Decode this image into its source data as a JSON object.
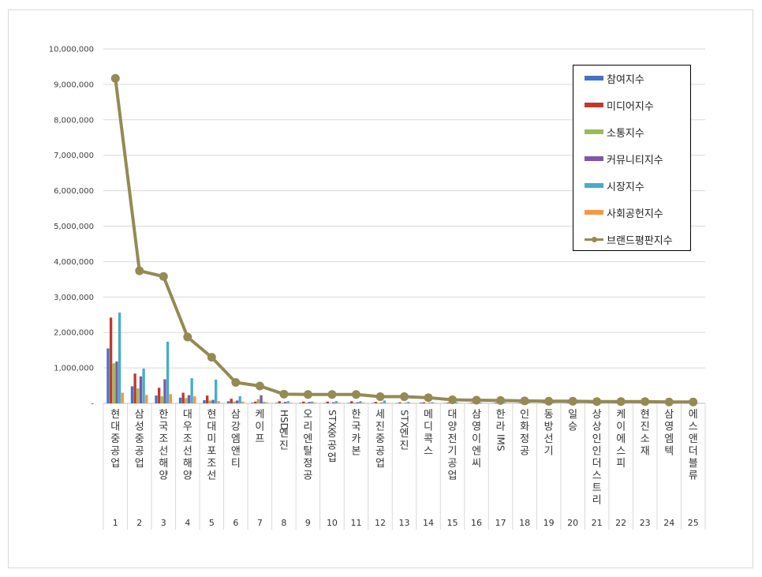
{
  "chart_data": {
    "type": "bar",
    "title": "",
    "xlabel": "",
    "ylabel": "",
    "ylim": [
      0,
      10000000
    ],
    "yticks": [
      "-",
      "1,000,000",
      "2,000,000",
      "3,000,000",
      "4,000,000",
      "5,000,000",
      "6,000,000",
      "7,000,000",
      "8,000,000",
      "9,000,000",
      "10,000,000"
    ],
    "grid": true,
    "legend_position": "top-right",
    "categories": [
      "현대중공업",
      "삼성중공업",
      "한국조선해양",
      "대우조선해양",
      "현대미포조선",
      "삼강엠앤티",
      "케이프",
      "HSD엔진",
      "오리엔탈정공",
      "STX중공업",
      "한국카본",
      "세진중공업",
      "STX엔진",
      "메디콕스",
      "대양전기공업",
      "삼영이엔씨",
      "한라IMS",
      "인화정공",
      "동방선기",
      "일승",
      "상상인인더스트리",
      "케이에스피",
      "현진소재",
      "삼영엠텍",
      "에스앤더블류"
    ],
    "ranks": [
      "1",
      "2",
      "3",
      "4",
      "5",
      "6",
      "7",
      "8",
      "9",
      "10",
      "11",
      "12",
      "13",
      "14",
      "15",
      "16",
      "17",
      "18",
      "19",
      "20",
      "21",
      "22",
      "23",
      "24",
      "25"
    ],
    "series": [
      {
        "name": "참여지수",
        "color": "#4472c4",
        "values": [
          1550000,
          480000,
          220000,
          160000,
          90000,
          60000,
          20000,
          15000,
          15000,
          12000,
          15000,
          12000,
          10000,
          20000,
          8000,
          8000,
          6000,
          6000,
          6000,
          5000,
          5000,
          5000,
          4000,
          4000,
          3000
        ]
      },
      {
        "name": "미디어지수",
        "color": "#c0392b",
        "values": [
          2420000,
          840000,
          440000,
          300000,
          220000,
          130000,
          50000,
          60000,
          50000,
          50000,
          60000,
          40000,
          30000,
          30000,
          20000,
          20000,
          20000,
          15000,
          15000,
          15000,
          12000,
          12000,
          10000,
          10000,
          8000
        ]
      },
      {
        "name": "소통지수",
        "color": "#9bbb59",
        "values": [
          1130000,
          420000,
          200000,
          150000,
          80000,
          50000,
          120000,
          20000,
          20000,
          10000,
          20000,
          15000,
          10000,
          10000,
          8000,
          8000,
          6000,
          6000,
          5000,
          5000,
          5000,
          4000,
          4000,
          4000,
          3000
        ]
      },
      {
        "name": "커뮤니티지수",
        "color": "#7e57a8",
        "values": [
          1180000,
          760000,
          680000,
          230000,
          100000,
          80000,
          230000,
          40000,
          40000,
          30000,
          30000,
          20000,
          15000,
          15000,
          12000,
          10000,
          10000,
          8000,
          8000,
          8000,
          6000,
          6000,
          5000,
          5000,
          4000
        ]
      },
      {
        "name": "시장지수",
        "color": "#4bacc6",
        "values": [
          2560000,
          980000,
          1740000,
          710000,
          670000,
          200000,
          40000,
          60000,
          50000,
          60000,
          60000,
          80000,
          40000,
          30000,
          30000,
          20000,
          20000,
          20000,
          15000,
          15000,
          12000,
          12000,
          10000,
          10000,
          8000
        ]
      },
      {
        "name": "사회공헌지수",
        "color": "#f79646",
        "values": [
          300000,
          240000,
          260000,
          200000,
          60000,
          50000,
          30000,
          20000,
          20000,
          20000,
          20000,
          15000,
          10000,
          10000,
          8000,
          8000,
          6000,
          6000,
          5000,
          5000,
          5000,
          4000,
          4000,
          4000,
          3000
        ]
      }
    ],
    "line_series": {
      "name": "브랜드평판지수",
      "color": "#948a54",
      "values": [
        9170000,
        3740000,
        3580000,
        1870000,
        1300000,
        590000,
        490000,
        260000,
        250000,
        250000,
        250000,
        190000,
        190000,
        160000,
        100000,
        90000,
        80000,
        70000,
        60000,
        60000,
        50000,
        50000,
        50000,
        40000,
        40000
      ]
    }
  }
}
